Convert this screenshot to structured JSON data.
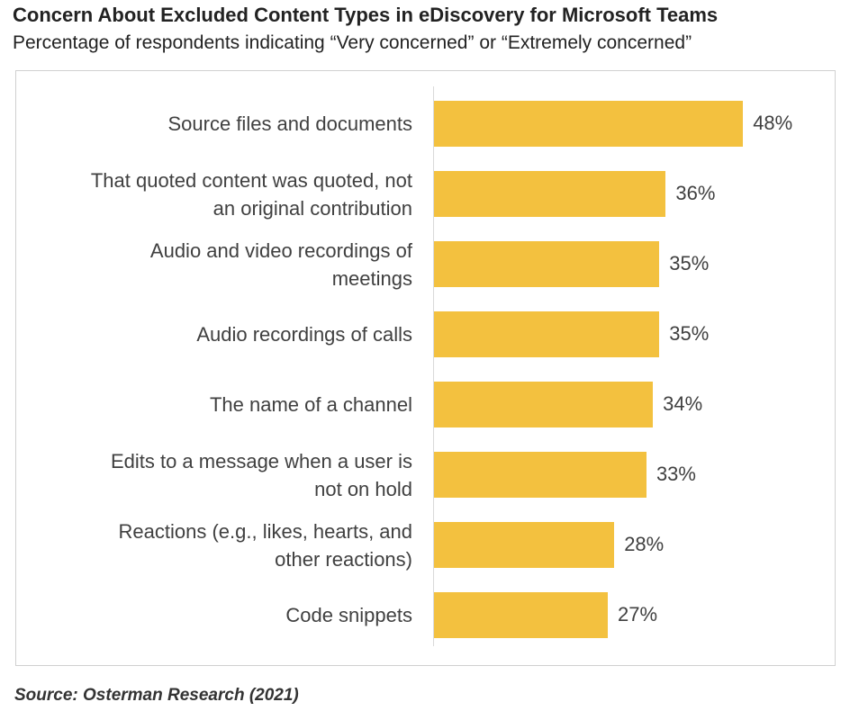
{
  "header": {
    "title": "Concern About Excluded Content Types in eDiscovery for Microsoft Teams",
    "subtitle": "Percentage of respondents indicating “Very concerned” or “Extremely concerned”"
  },
  "footer": {
    "source": "Source: Osterman Research (2021)"
  },
  "colors": {
    "bar": "#f3c13f",
    "text": "#404040"
  },
  "chart_data": {
    "type": "bar",
    "orientation": "horizontal",
    "title": "Concern About Excluded Content Types in eDiscovery for Microsoft Teams",
    "subtitle": "Percentage of respondents indicating “Very concerned” or “Extremely concerned”",
    "categories": [
      "Source files and documents",
      "That quoted content was quoted, not\nan original contribution",
      "Audio and video recordings of\nmeetings",
      "Audio recordings of calls",
      "The name of a channel",
      "Edits to a message when a user is\nnot on hold",
      "Reactions (e.g., likes, hearts, and\nother reactions)",
      "Code snippets"
    ],
    "values": [
      48,
      36,
      35,
      35,
      34,
      33,
      28,
      27
    ],
    "value_labels": [
      "48%",
      "36%",
      "35%",
      "35%",
      "34%",
      "33%",
      "28%",
      "27%"
    ],
    "xlim": [
      0,
      50
    ],
    "grid": false,
    "legend": "none"
  }
}
